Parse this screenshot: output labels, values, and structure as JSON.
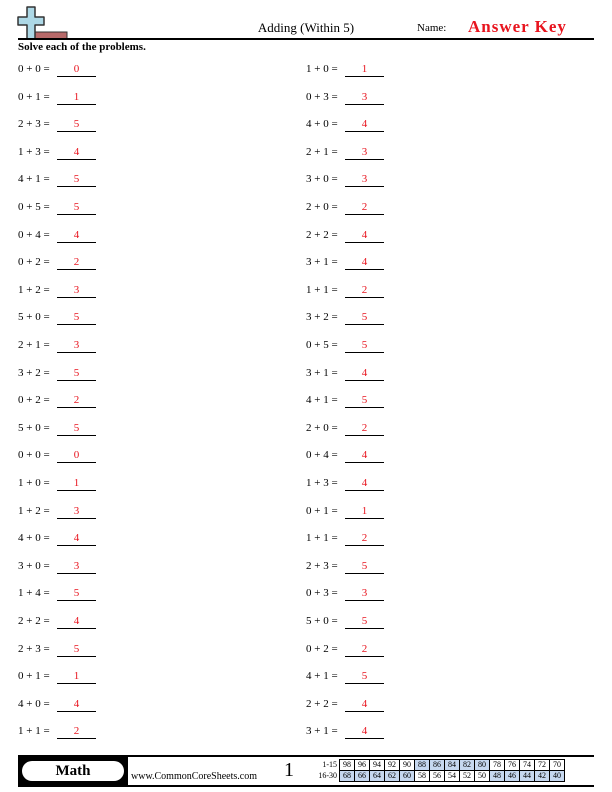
{
  "header": {
    "title": "Adding (Within 5)",
    "name_label": "Name:",
    "answer_key": "Answer Key",
    "instructions": "Solve each of the problems."
  },
  "left_problems": [
    {
      "q": "0 + 0 =",
      "a": "0"
    },
    {
      "q": "0 + 1 =",
      "a": "1"
    },
    {
      "q": "2 + 3 =",
      "a": "5"
    },
    {
      "q": "1 + 3 =",
      "a": "4"
    },
    {
      "q": "4 + 1 =",
      "a": "5"
    },
    {
      "q": "0 + 5 =",
      "a": "5"
    },
    {
      "q": "0 + 4 =",
      "a": "4"
    },
    {
      "q": "0 + 2 =",
      "a": "2"
    },
    {
      "q": "1 + 2 =",
      "a": "3"
    },
    {
      "q": "5 + 0 =",
      "a": "5"
    },
    {
      "q": "2 + 1 =",
      "a": "3"
    },
    {
      "q": "3 + 2 =",
      "a": "5"
    },
    {
      "q": "0 + 2 =",
      "a": "2"
    },
    {
      "q": "5 + 0 =",
      "a": "5"
    },
    {
      "q": "0 + 0 =",
      "a": "0"
    },
    {
      "q": "1 + 0 =",
      "a": "1"
    },
    {
      "q": "1 + 2 =",
      "a": "3"
    },
    {
      "q": "4 + 0 =",
      "a": "4"
    },
    {
      "q": "3 + 0 =",
      "a": "3"
    },
    {
      "q": "1 + 4 =",
      "a": "5"
    },
    {
      "q": "2 + 2 =",
      "a": "4"
    },
    {
      "q": "2 + 3 =",
      "a": "5"
    },
    {
      "q": "0 + 1 =",
      "a": "1"
    },
    {
      "q": "4 + 0 =",
      "a": "4"
    },
    {
      "q": "1 + 1 =",
      "a": "2"
    }
  ],
  "right_problems": [
    {
      "q": "1 + 0 =",
      "a": "1"
    },
    {
      "q": "0 + 3 =",
      "a": "3"
    },
    {
      "q": "4 + 0 =",
      "a": "4"
    },
    {
      "q": "2 + 1 =",
      "a": "3"
    },
    {
      "q": "3 + 0 =",
      "a": "3"
    },
    {
      "q": "2 + 0 =",
      "a": "2"
    },
    {
      "q": "2 + 2 =",
      "a": "4"
    },
    {
      "q": "3 + 1 =",
      "a": "4"
    },
    {
      "q": "1 + 1 =",
      "a": "2"
    },
    {
      "q": "3 + 2 =",
      "a": "5"
    },
    {
      "q": "0 + 5 =",
      "a": "5"
    },
    {
      "q": "3 + 1 =",
      "a": "4"
    },
    {
      "q": "4 + 1 =",
      "a": "5"
    },
    {
      "q": "2 + 0 =",
      "a": "2"
    },
    {
      "q": "0 + 4 =",
      "a": "4"
    },
    {
      "q": "1 + 3 =",
      "a": "4"
    },
    {
      "q": "0 + 1 =",
      "a": "1"
    },
    {
      "q": "1 + 1 =",
      "a": "2"
    },
    {
      "q": "2 + 3 =",
      "a": "5"
    },
    {
      "q": "0 + 3 =",
      "a": "3"
    },
    {
      "q": "5 + 0 =",
      "a": "5"
    },
    {
      "q": "0 + 2 =",
      "a": "2"
    },
    {
      "q": "4 + 1 =",
      "a": "5"
    },
    {
      "q": "2 + 2 =",
      "a": "4"
    },
    {
      "q": "3 + 1 =",
      "a": "4"
    }
  ],
  "footer": {
    "subject": "Math",
    "website": "www.CommonCoreSheets.com",
    "page": "1",
    "score_rows": [
      {
        "label": "1-15",
        "values": [
          "98",
          "96",
          "94",
          "92",
          "90",
          "88",
          "86",
          "84",
          "82",
          "80",
          "78",
          "76",
          "74",
          "72",
          "70"
        ],
        "highlight": [
          false,
          false,
          false,
          false,
          false,
          true,
          true,
          true,
          true,
          true,
          false,
          false,
          false,
          false,
          false
        ]
      },
      {
        "label": "16-30",
        "values": [
          "68",
          "66",
          "64",
          "62",
          "60",
          "58",
          "56",
          "54",
          "52",
          "50",
          "48",
          "46",
          "44",
          "42",
          "40"
        ],
        "highlight": [
          true,
          true,
          true,
          true,
          true,
          false,
          false,
          false,
          false,
          false,
          true,
          true,
          true,
          true,
          true
        ]
      }
    ]
  },
  "colors": {
    "answer": "#e8141e",
    "highlight": "#c6d8f0",
    "logo_plus": "#add8e6",
    "logo_bar": "#b86a6a"
  }
}
